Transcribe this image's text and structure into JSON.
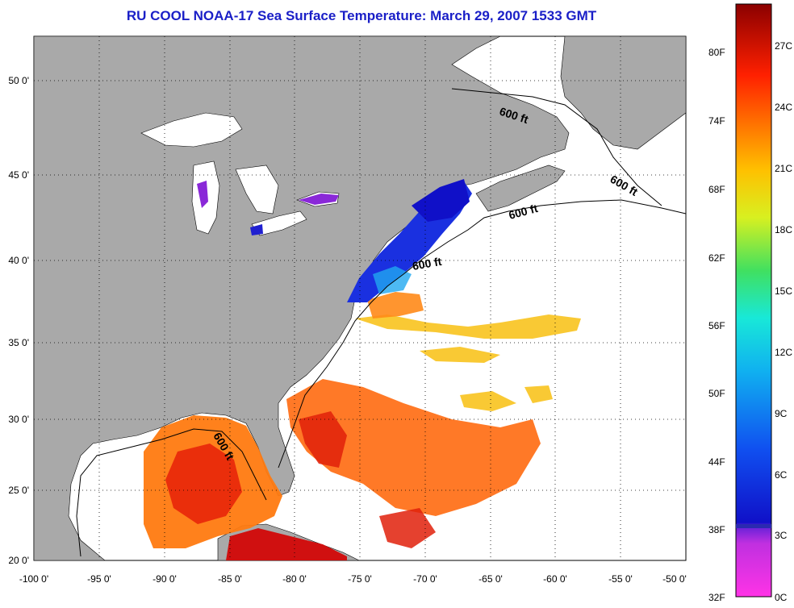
{
  "title": "RU COOL  NOAA-17  Sea Surface Temperature:  March 29, 2007 1533 GMT",
  "map": {
    "lon_range": [
      -100,
      -50
    ],
    "lat_range": [
      20,
      52.5
    ],
    "lon_ticks": [
      "-100 0'",
      "-95 0'",
      "-90 0'",
      "-85 0'",
      "-80 0'",
      "-75 0'",
      "-70 0'",
      "-65 0'",
      "-60 0'",
      "-55 0'",
      "-50 0'"
    ],
    "lat_ticks": [
      "20 0'",
      "25 0'",
      "30 0'",
      "35 0'",
      "40 0'",
      "45 0'",
      "50 0'"
    ],
    "grid": true,
    "land_color": "#a9a9a9",
    "contour_label": "600 ft"
  },
  "colorbar": {
    "f_labels": [
      "32F",
      "38F",
      "44F",
      "50F",
      "56F",
      "62F",
      "68F",
      "74F",
      "80F"
    ],
    "c_labels": [
      "0C",
      "3C",
      "6C",
      "9C",
      "12C",
      "15C",
      "18C",
      "21C",
      "24C",
      "27C"
    ],
    "colors": [
      "#ff33e6",
      "#9a2ad8",
      "#2a18d6",
      "#1560f0",
      "#18d8e8",
      "#38e070",
      "#e8f020",
      "#ffa000",
      "#ff3000",
      "#8b0000"
    ]
  }
}
